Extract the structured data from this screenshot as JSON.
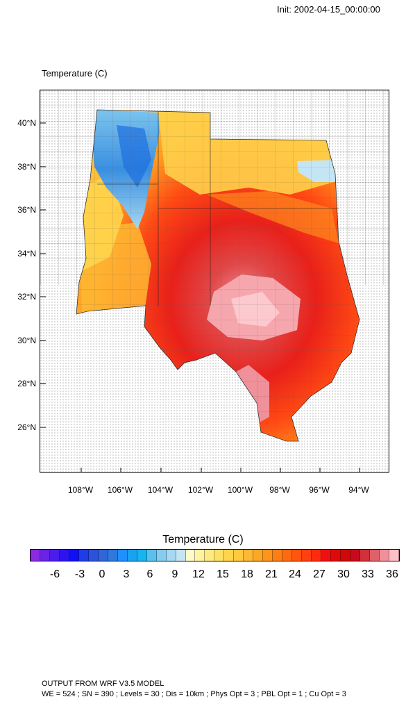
{
  "header": {
    "init": "Init: 2002-04-15_00:00:00"
  },
  "map": {
    "title": "Temperature   (C)",
    "lat_labels": [
      "40°N",
      "38°N",
      "36°N",
      "34°N",
      "32°N",
      "30°N",
      "28°N",
      "26°N"
    ],
    "lon_labels": [
      "108°W",
      "106°W",
      "104°W",
      "102°W",
      "100°W",
      "98°W",
      "96°W",
      "94°W"
    ]
  },
  "colorbar": {
    "title": "Temperature  (C)",
    "labels": [
      "-6",
      "-3",
      "0",
      "3",
      "6",
      "9",
      "12",
      "15",
      "18",
      "21",
      "24",
      "27",
      "30",
      "33",
      "36"
    ],
    "colors": [
      "#8a2be2",
      "#6a22e6",
      "#4b1ceb",
      "#2c14f0",
      "#1010f5",
      "#1e3ce8",
      "#2a52dd",
      "#2f66d8",
      "#2f78de",
      "#1e90ff",
      "#18a2f2",
      "#18b4ee",
      "#5bc0ee",
      "#87cbee",
      "#a6d8f0",
      "#c4e6f4",
      "#fffac8",
      "#fff3a0",
      "#ffea80",
      "#ffe066",
      "#ffd54d",
      "#ffc940",
      "#ffb833",
      "#ffa626",
      "#ff941a",
      "#ff7f14",
      "#ff6a10",
      "#ff5510",
      "#ff4010",
      "#ff2a10",
      "#f01010",
      "#e00a0a",
      "#d00808",
      "#c80a1e",
      "#d2303c",
      "#e0606a",
      "#f0909a",
      "#fcbfc6"
    ]
  },
  "footer": {
    "line1": "OUTPUT FROM WRF V3.5 MODEL",
    "line2": "WE = 524 ; SN = 390 ; Levels = 30 ; Dis = 10km ; Phys Opt = 3 ; PBL Opt = 1 ; Cu Opt = 3"
  }
}
